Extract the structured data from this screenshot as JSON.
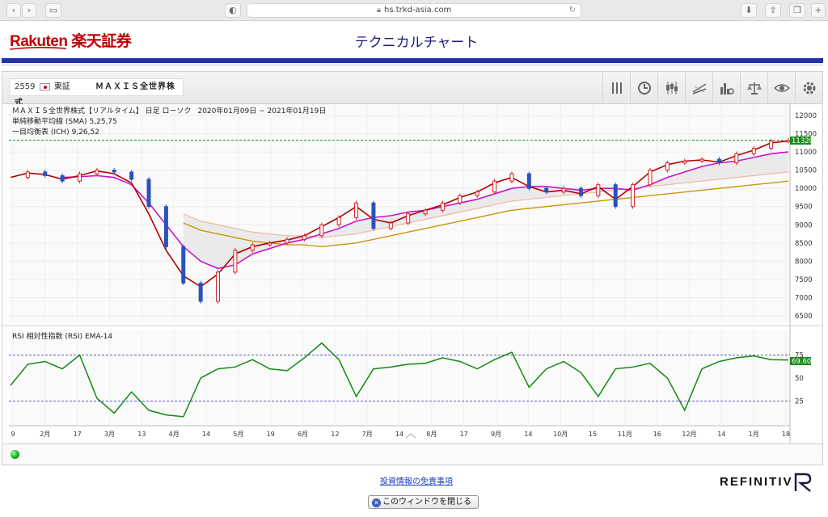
{
  "browser": {
    "url": "hs.trkd-asia.com",
    "nav_back": "‹",
    "nav_forward": "›"
  },
  "header": {
    "logo": "Rakuten 楽天証券",
    "title": "テクニカルチャート"
  },
  "toolbar": {
    "code": "2559",
    "market": "東証",
    "name": "ＭＡＸＩＳ全世界株式",
    "tools": [
      "bars-icon",
      "clock-icon",
      "candles-icon",
      "trendline-icon",
      "volume-icon",
      "balance-icon",
      "eye-icon",
      "gear-icon"
    ]
  },
  "chart_data": [
    {
      "type": "candlestick",
      "title": "ＭＡＸＩＳ全世界株式【リアルタイム】 日足 ローソク",
      "period": "2020年01月09日 ~ 2021年01月19日",
      "legend": [
        {
          "name": "単純移動平均線 (SMA)",
          "params": "5,25,75"
        },
        {
          "name": "一目均衡表 (ICH)",
          "params": "9,26,52"
        }
      ],
      "ylim": [
        6500,
        12000
      ],
      "yticks": [
        12000,
        11500,
        11000,
        10500,
        10000,
        9500,
        9000,
        8500,
        8000,
        7500,
        7000,
        6500
      ],
      "last_price": "11320",
      "last_price_line": 11320,
      "colors": {
        "up": "#d62020",
        "down": "#2a52be",
        "sma5": "#b00000",
        "sma25": "#cc11cc",
        "sma75": "#f0b8a0",
        "senkou_a": "#c8960a",
        "senkou_b": "#ee00ee",
        "chikou": "#f4a0a0",
        "cloud": "#e8e8e8"
      },
      "x_index": [
        0,
        8,
        16,
        24,
        32,
        40,
        48,
        56,
        64,
        72,
        80,
        88,
        96,
        104,
        112,
        120,
        128,
        136,
        144,
        152,
        160,
        168,
        176,
        184,
        192,
        200,
        208,
        216,
        224,
        232,
        240,
        248,
        256,
        264,
        272,
        280,
        288,
        296,
        304,
        312,
        320,
        328,
        336,
        344,
        352,
        360
      ],
      "close": [
        10300,
        10450,
        10350,
        10200,
        10400,
        10500,
        10450,
        10250,
        9500,
        8400,
        7400,
        6900,
        7700,
        8300,
        8450,
        8500,
        8600,
        8700,
        9000,
        9200,
        9600,
        8900,
        9050,
        9300,
        9400,
        9600,
        9800,
        9900,
        10200,
        10400,
        10000,
        9900,
        10000,
        9800,
        10100,
        9500,
        10100,
        10500,
        10700,
        10750,
        10800,
        10700,
        10950,
        11100,
        11300,
        11320
      ],
      "sma5": [
        10300,
        10420,
        10380,
        10250,
        10350,
        10480,
        10400,
        10150,
        9300,
        8300,
        7600,
        7300,
        7650,
        8200,
        8400,
        8500,
        8580,
        8700,
        8950,
        9200,
        9500,
        9150,
        9050,
        9250,
        9400,
        9550,
        9750,
        9900,
        10150,
        10300,
        10050,
        9900,
        9950,
        9850,
        10050,
        9700,
        10050,
        10450,
        10650,
        10750,
        10780,
        10720,
        10900,
        11050,
        11250,
        11300
      ],
      "sma25": [
        null,
        null,
        null,
        10300,
        10320,
        10350,
        10300,
        10100,
        9600,
        9000,
        8400,
        8000,
        7800,
        7900,
        8200,
        8350,
        8500,
        8600,
        8750,
        8900,
        9100,
        9200,
        9250,
        9350,
        9400,
        9500,
        9600,
        9700,
        9850,
        10000,
        10050,
        10050,
        10000,
        9950,
        10000,
        10000,
        9950,
        10100,
        10300,
        10450,
        10600,
        10700,
        10750,
        10850,
        10950,
        11000
      ],
      "sma75": [
        null,
        null,
        null,
        null,
        null,
        null,
        null,
        null,
        null,
        null,
        9300,
        9100,
        9000,
        8900,
        8800,
        8750,
        8700,
        8700,
        8650,
        8700,
        8750,
        8850,
        8950,
        9050,
        9150,
        9250,
        9350,
        9450,
        9550,
        9650,
        9700,
        9750,
        9800,
        9850,
        9900,
        9950,
        10000,
        10050,
        10100,
        10150,
        10200,
        10250,
        10300,
        10350,
        10400,
        10450
      ]
    },
    {
      "type": "line",
      "title": "RSI 相対性指数 (RSI)",
      "params": "EMA-14",
      "ylim": [
        0,
        100
      ],
      "yticks": [
        75,
        50,
        25
      ],
      "last_value": "69.60",
      "hlines": [
        75,
        25
      ],
      "color": "#128a12",
      "x_index": [
        0,
        8,
        16,
        24,
        32,
        40,
        48,
        56,
        64,
        72,
        80,
        88,
        96,
        104,
        112,
        120,
        128,
        136,
        144,
        152,
        160,
        168,
        176,
        184,
        192,
        200,
        208,
        216,
        224,
        232,
        240,
        248,
        256,
        264,
        272,
        280,
        288,
        296,
        304,
        312,
        320,
        328,
        336,
        344,
        352,
        360
      ],
      "values": [
        42,
        65,
        68,
        60,
        75,
        28,
        12,
        35,
        15,
        10,
        8,
        50,
        60,
        62,
        70,
        60,
        58,
        72,
        88,
        70,
        30,
        60,
        62,
        65,
        66,
        72,
        68,
        60,
        70,
        78,
        40,
        60,
        68,
        56,
        30,
        60,
        62,
        66,
        50,
        15,
        60,
        68,
        72,
        74,
        70,
        69.6
      ],
      "x_tick_labels": [
        "9",
        "2月",
        "17",
        "3月",
        "13",
        "4月",
        "14",
        "5月",
        "19",
        "6月",
        "12",
        "7月",
        "14",
        "8月",
        "17",
        "9月",
        "14",
        "10月",
        "15",
        "11月",
        "16",
        "12月",
        "14",
        "1月",
        "18"
      ]
    }
  ],
  "footer": {
    "disclaimer": "投資情報の免責事項",
    "brand": "REFINITIV",
    "close_button": "このウィンドウを閉じる"
  }
}
